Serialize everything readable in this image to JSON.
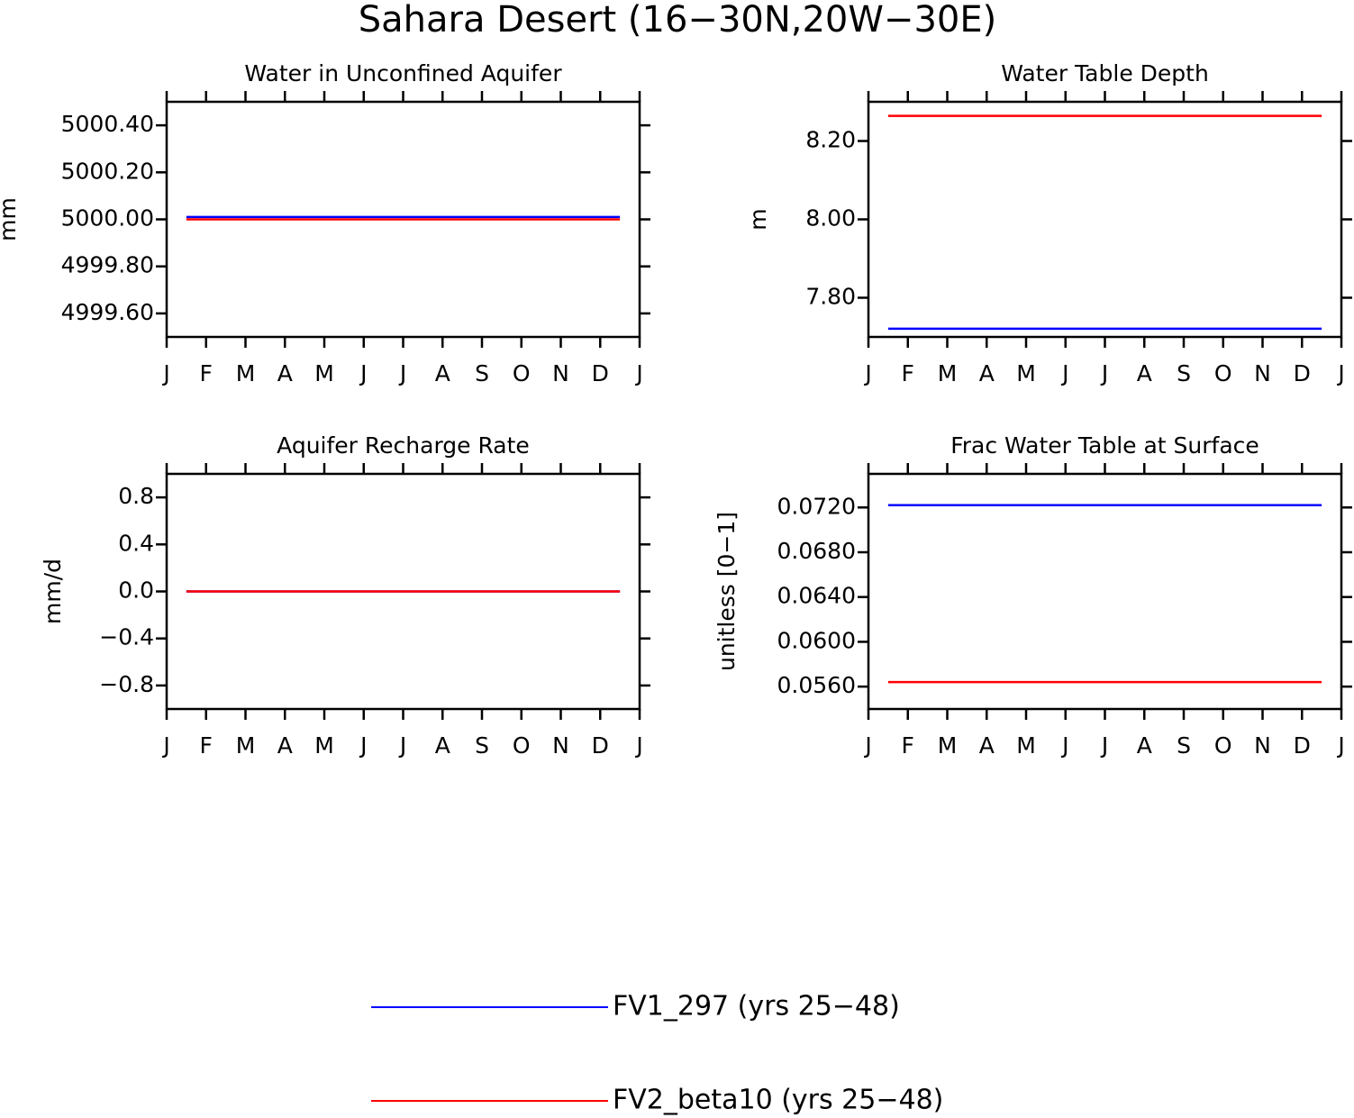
{
  "title": "Sahara Desert (16−30N,20W−30E)",
  "chart_data": [
    {
      "type": "line",
      "title": "Water in Unconfined Aquifer",
      "ylabel": "mm",
      "x": [
        0.5,
        1.5,
        2.5,
        3.5,
        4.5,
        5.5,
        6.5,
        7.5,
        8.5,
        9.5,
        10.5,
        11.5
      ],
      "xlim": [
        0,
        12
      ],
      "xticks": [
        {
          "value": 0,
          "label": "J"
        },
        {
          "value": 1,
          "label": "F"
        },
        {
          "value": 2,
          "label": "M"
        },
        {
          "value": 3,
          "label": "A"
        },
        {
          "value": 4,
          "label": "M"
        },
        {
          "value": 5,
          "label": "J"
        },
        {
          "value": 6,
          "label": "J"
        },
        {
          "value": 7,
          "label": "A"
        },
        {
          "value": 8,
          "label": "S"
        },
        {
          "value": 9,
          "label": "O"
        },
        {
          "value": 10,
          "label": "N"
        },
        {
          "value": 11,
          "label": "D"
        },
        {
          "value": 12,
          "label": "J"
        }
      ],
      "ylim": [
        4999.5,
        5000.5
      ],
      "yticks": [
        {
          "value": 4999.6,
          "label": "4999.60"
        },
        {
          "value": 4999.8,
          "label": "4999.80"
        },
        {
          "value": 5000.0,
          "label": "5000.00"
        },
        {
          "value": 5000.2,
          "label": "5000.20"
        },
        {
          "value": 5000.4,
          "label": "5000.40"
        }
      ],
      "series": [
        {
          "name": "FV1_297 (yrs 25−48)",
          "color": "#0000ff",
          "values": [
            5000.01,
            5000.01,
            5000.01,
            5000.01,
            5000.01,
            5000.01,
            5000.01,
            5000.01,
            5000.01,
            5000.01,
            5000.01,
            5000.01
          ]
        },
        {
          "name": "FV2_beta10 (yrs 25−48)",
          "color": "#ff0000",
          "values": [
            5000.0,
            5000.0,
            5000.0,
            5000.0,
            5000.0,
            5000.0,
            5000.0,
            5000.0,
            5000.0,
            5000.0,
            5000.0,
            5000.0
          ]
        }
      ]
    },
    {
      "type": "line",
      "title": "Water Table Depth",
      "ylabel": "m",
      "x": [
        0.5,
        1.5,
        2.5,
        3.5,
        4.5,
        5.5,
        6.5,
        7.5,
        8.5,
        9.5,
        10.5,
        11.5
      ],
      "xlim": [
        0,
        12
      ],
      "xticks": [
        {
          "value": 0,
          "label": "J"
        },
        {
          "value": 1,
          "label": "F"
        },
        {
          "value": 2,
          "label": "M"
        },
        {
          "value": 3,
          "label": "A"
        },
        {
          "value": 4,
          "label": "M"
        },
        {
          "value": 5,
          "label": "J"
        },
        {
          "value": 6,
          "label": "J"
        },
        {
          "value": 7,
          "label": "A"
        },
        {
          "value": 8,
          "label": "S"
        },
        {
          "value": 9,
          "label": "O"
        },
        {
          "value": 10,
          "label": "N"
        },
        {
          "value": 11,
          "label": "D"
        },
        {
          "value": 12,
          "label": "J"
        }
      ],
      "ylim": [
        7.7,
        8.3
      ],
      "yticks": [
        {
          "value": 7.8,
          "label": "7.80"
        },
        {
          "value": 8.0,
          "label": "8.00"
        },
        {
          "value": 8.2,
          "label": "8.20"
        }
      ],
      "series": [
        {
          "name": "FV1_297 (yrs 25−48)",
          "color": "#0000ff",
          "values": [
            7.721,
            7.721,
            7.721,
            7.721,
            7.721,
            7.721,
            7.721,
            7.721,
            7.721,
            7.721,
            7.721,
            7.721
          ]
        },
        {
          "name": "FV2_beta10 (yrs 25−48)",
          "color": "#ff0000",
          "values": [
            8.264,
            8.264,
            8.264,
            8.264,
            8.264,
            8.264,
            8.264,
            8.264,
            8.264,
            8.264,
            8.264,
            8.264
          ]
        }
      ]
    },
    {
      "type": "line",
      "title": "Aquifer Recharge Rate",
      "ylabel": "mm/d",
      "x": [
        0.5,
        1.5,
        2.5,
        3.5,
        4.5,
        5.5,
        6.5,
        7.5,
        8.5,
        9.5,
        10.5,
        11.5
      ],
      "xlim": [
        0,
        12
      ],
      "xticks": [
        {
          "value": 0,
          "label": "J"
        },
        {
          "value": 1,
          "label": "F"
        },
        {
          "value": 2,
          "label": "M"
        },
        {
          "value": 3,
          "label": "A"
        },
        {
          "value": 4,
          "label": "M"
        },
        {
          "value": 5,
          "label": "J"
        },
        {
          "value": 6,
          "label": "J"
        },
        {
          "value": 7,
          "label": "A"
        },
        {
          "value": 8,
          "label": "S"
        },
        {
          "value": 9,
          "label": "O"
        },
        {
          "value": 10,
          "label": "N"
        },
        {
          "value": 11,
          "label": "D"
        },
        {
          "value": 12,
          "label": "J"
        }
      ],
      "ylim": [
        -1.0,
        1.0
      ],
      "yticks": [
        {
          "value": -0.8,
          "label": "−0.8"
        },
        {
          "value": -0.4,
          "label": "−0.4"
        },
        {
          "value": 0,
          "label": "0.0"
        },
        0.4,
        0.8
      ],
      "series": [
        {
          "name": "FV1_297 (yrs 25−48)",
          "color": "#0000ff",
          "values": [
            0,
            0,
            0,
            0,
            0,
            0,
            0,
            0,
            0,
            0,
            0,
            0
          ]
        },
        {
          "name": "FV2_beta10 (yrs 25−48)",
          "color": "#ff0000",
          "values": [
            0,
            0,
            0,
            0,
            0,
            0,
            0,
            0,
            0,
            0,
            0,
            0
          ]
        }
      ]
    },
    {
      "type": "line",
      "title": "Frac Water Table at Surface",
      "ylabel": "unitless [0−1]",
      "x": [
        0.5,
        1.5,
        2.5,
        3.5,
        4.5,
        5.5,
        6.5,
        7.5,
        8.5,
        9.5,
        10.5,
        11.5
      ],
      "xlim": [
        0,
        12
      ],
      "xticks": [
        {
          "value": 0,
          "label": "J"
        },
        {
          "value": 1,
          "label": "F"
        },
        {
          "value": 2,
          "label": "M"
        },
        {
          "value": 3,
          "label": "A"
        },
        {
          "value": 4,
          "label": "M"
        },
        {
          "value": 5,
          "label": "J"
        },
        {
          "value": 6,
          "label": "J"
        },
        {
          "value": 7,
          "label": "A"
        },
        {
          "value": 8,
          "label": "S"
        },
        {
          "value": 9,
          "label": "O"
        },
        {
          "value": 10,
          "label": "N"
        },
        {
          "value": 11,
          "label": "D"
        },
        {
          "value": 12,
          "label": "J"
        }
      ],
      "ylim": [
        0.054,
        0.075
      ],
      "yticks": [
        {
          "value": 0.056,
          "label": "0.0560"
        },
        {
          "value": 0.06,
          "label": "0.0600"
        },
        {
          "value": 0.064,
          "label": "0.0640"
        },
        {
          "value": 0.068,
          "label": "0.0680"
        },
        {
          "value": 0.072,
          "label": "0.0720"
        }
      ],
      "series": [
        {
          "name": "FV1_297 (yrs 25−48)",
          "color": "#0000ff",
          "values": [
            0.0722,
            0.0722,
            0.0722,
            0.0722,
            0.0722,
            0.0722,
            0.0722,
            0.0722,
            0.0722,
            0.0722,
            0.0722,
            0.0722
          ]
        },
        {
          "name": "FV2_beta10 (yrs 25−48)",
          "color": "#ff0000",
          "values": [
            0.0564,
            0.0564,
            0.0564,
            0.0564,
            0.0564,
            0.0564,
            0.0564,
            0.0564,
            0.0564,
            0.0564,
            0.0564,
            0.0564
          ]
        }
      ]
    }
  ]
}
